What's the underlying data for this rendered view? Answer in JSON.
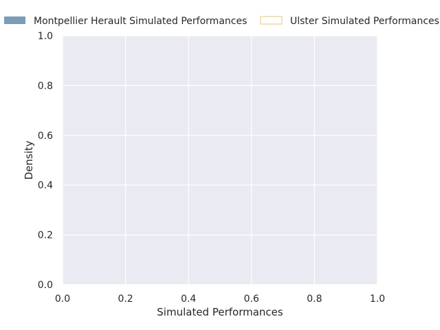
{
  "chart_data": {
    "type": "area",
    "xlabel": "Simulated Performances",
    "ylabel": "Density",
    "xlim": [
      0.0,
      1.0
    ],
    "ylim": [
      0.0,
      1.0
    ],
    "x_ticks": [
      "0.0",
      "0.2",
      "0.4",
      "0.6",
      "0.8",
      "1.0"
    ],
    "y_ticks": [
      "0.0",
      "0.2",
      "0.4",
      "0.6",
      "0.8",
      "1.0"
    ],
    "grid": true,
    "legend_position": "top",
    "series": [
      {
        "name": "Montpellier Herault Simulated Performances",
        "x": [],
        "y": [],
        "color": "#7b9cb6",
        "style": "filled"
      },
      {
        "name": "Ulster Simulated Performances",
        "x": [],
        "y": [],
        "color": "#e8c27f",
        "style": "outline"
      }
    ]
  },
  "colors": {
    "plot_background": "#eaeaf2",
    "grid": "#ffffff",
    "text": "#262626"
  }
}
